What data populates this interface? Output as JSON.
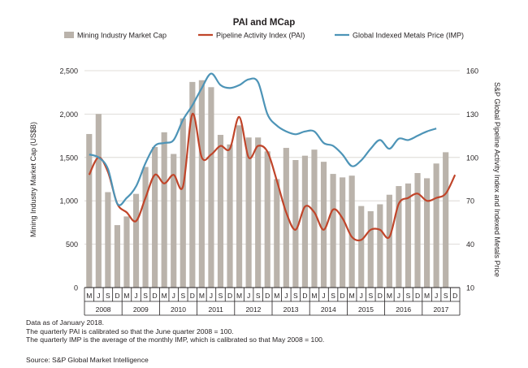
{
  "chart_data": {
    "type": "bar+line",
    "title": "PAI and MCap",
    "ylabel_left": "Mining Industry Market Cap (US$B)",
    "ylabel_right": "S&P Global Pipeline Activity Index and Indexed Metals Price",
    "ylim_left": [
      0,
      2500
    ],
    "ylim_right": [
      10,
      160
    ],
    "yticks_left": [
      "0",
      "500",
      "1,000",
      "1,500",
      "2,000",
      "2,500"
    ],
    "yticks_right": [
      "10",
      "40",
      "70",
      "100",
      "130",
      "160"
    ],
    "quarter_labels": [
      "M",
      "J",
      "S",
      "D",
      "M",
      "J",
      "S",
      "D",
      "M",
      "J",
      "S",
      "D",
      "M",
      "J",
      "S",
      "D",
      "M",
      "J",
      "S",
      "D",
      "M",
      "J",
      "S",
      "D",
      "M",
      "J",
      "S",
      "D",
      "M",
      "J",
      "S",
      "D",
      "M",
      "J",
      "S",
      "D",
      "M",
      "J",
      "S",
      "D"
    ],
    "year_labels": [
      "2008",
      "2009",
      "2010",
      "2011",
      "2012",
      "2013",
      "2014",
      "2015",
      "2016",
      "2017"
    ],
    "legend_position": "top",
    "grid": "horizontal",
    "series": [
      {
        "name": "Mining Industry Market Cap",
        "type": "bar",
        "axis": "left",
        "color": "#bab3ab",
        "values": [
          1770,
          2000,
          1100,
          720,
          820,
          1080,
          1390,
          1620,
          1790,
          1540,
          1950,
          2370,
          2390,
          2310,
          1760,
          1650,
          1870,
          1730,
          1730,
          1570,
          1250,
          1610,
          1470,
          1520,
          1590,
          1450,
          1310,
          1270,
          1290,
          940,
          880,
          960,
          1070,
          1170,
          1200,
          1320,
          1260,
          1430,
          1560
        ]
      },
      {
        "name": "Pipeline Activity Index (PAI)",
        "type": "line",
        "axis": "right",
        "color": "#c0452a",
        "values": [
          88,
          100,
          90,
          68,
          62,
          56,
          72,
          88,
          82,
          88,
          80,
          130,
          100,
          102,
          108,
          106,
          128,
          100,
          108,
          104,
          84,
          62,
          50,
          66,
          62,
          50,
          64,
          58,
          45,
          43,
          50,
          50,
          45,
          68,
          72,
          75,
          70,
          72,
          75,
          88
        ]
      },
      {
        "name": "Global Indexed Metals Price (IMP)",
        "type": "line",
        "axis": "right",
        "color": "#4d94b7",
        "values": [
          102,
          100,
          92,
          68,
          72,
          80,
          96,
          108,
          110,
          112,
          126,
          136,
          148,
          158,
          150,
          148,
          150,
          154,
          152,
          130,
          122,
          118,
          116,
          118,
          118,
          110,
          108,
          102,
          94,
          98,
          106,
          112,
          106,
          113,
          112,
          115,
          118,
          120
        ]
      }
    ]
  },
  "notes": [
    "Data as of January 2018.",
    "The quarterly PAI is calibrated so that the June quarter 2008 = 100.",
    "The quarterly IMP is the average of the monthly IMP, which is calibrated so that May 2008 = 100."
  ],
  "source": "Source: S&P Global Market Intelligence"
}
